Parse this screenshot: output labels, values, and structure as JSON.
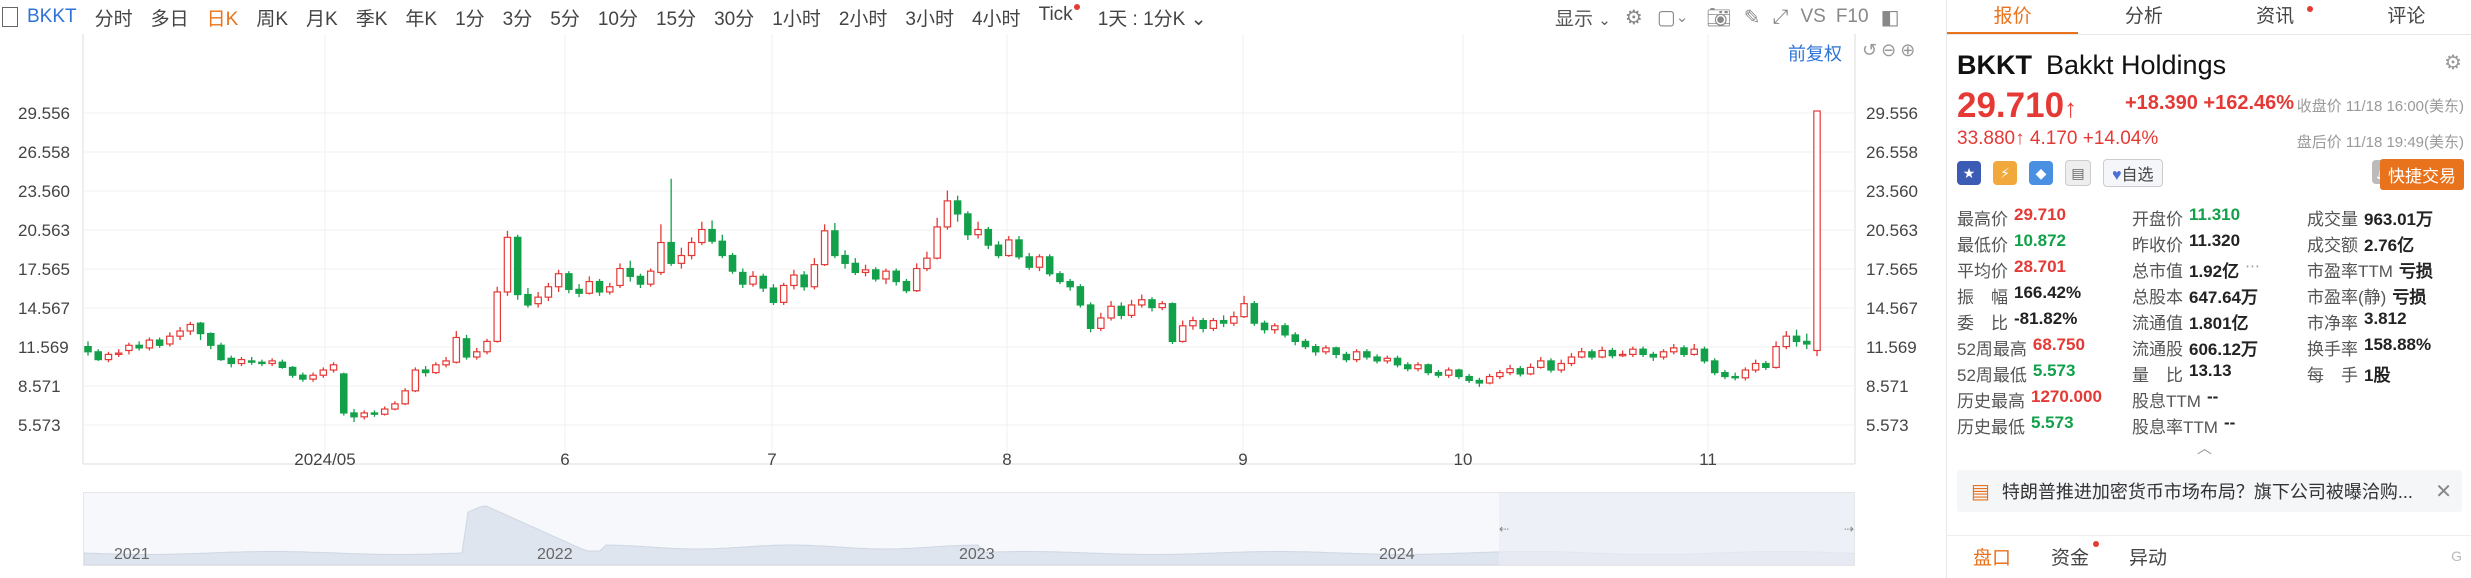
{
  "toolbar": {
    "ticker": "BKKT",
    "periods": [
      "分时",
      "多日",
      "日K",
      "周K",
      "月K",
      "季K",
      "年K",
      "1分",
      "3分",
      "5分",
      "10分",
      "15分",
      "30分",
      "1小时",
      "2小时",
      "3小时",
      "4小时",
      "Tick"
    ],
    "active_period": "日K",
    "kline_setting": "1天 : 1分K",
    "display_label": "显示",
    "vs_label": "VS",
    "f10_label": "F10",
    "adjust_label": "前复权"
  },
  "chart_data": {
    "type": "candlestick",
    "y_ticks": [
      "29.556",
      "26.558",
      "23.560",
      "20.563",
      "17.565",
      "14.567",
      "11.569",
      "8.571",
      "5.573"
    ],
    "x_ticks": [
      "2024/05",
      "6",
      "7",
      "8",
      "9",
      "10",
      "11"
    ],
    "ylim": [
      3.5,
      31
    ],
    "candles": [
      [
        11.6,
        11.2,
        12.0,
        10.9
      ],
      [
        11.2,
        10.6,
        11.4,
        10.5
      ],
      [
        10.6,
        11.0,
        11.2,
        10.4
      ],
      [
        11.0,
        11.1,
        11.4,
        10.8
      ],
      [
        11.3,
        11.7,
        11.9,
        11.0
      ],
      [
        11.7,
        11.5,
        12.0,
        11.3
      ],
      [
        11.5,
        12.1,
        12.3,
        11.3
      ],
      [
        12.1,
        11.7,
        12.3,
        11.5
      ],
      [
        11.8,
        12.4,
        12.7,
        11.6
      ],
      [
        12.4,
        12.8,
        13.1,
        12.1
      ],
      [
        12.8,
        13.3,
        13.5,
        12.5
      ],
      [
        13.4,
        12.6,
        13.5,
        12.1
      ],
      [
        12.6,
        11.7,
        12.7,
        11.4
      ],
      [
        11.7,
        10.6,
        11.9,
        10.5
      ],
      [
        10.7,
        10.3,
        10.9,
        10.0
      ],
      [
        10.3,
        10.6,
        10.8,
        10.1
      ],
      [
        10.5,
        10.4,
        10.8,
        10.2
      ],
      [
        10.4,
        10.3,
        10.6,
        10.1
      ],
      [
        10.3,
        10.5,
        10.7,
        10.1
      ],
      [
        10.4,
        10.0,
        10.6,
        9.9
      ],
      [
        10.0,
        9.4,
        10.1,
        9.2
      ],
      [
        9.4,
        9.1,
        9.6,
        8.9
      ],
      [
        9.1,
        9.4,
        9.6,
        8.9
      ],
      [
        9.4,
        9.8,
        10.0,
        9.2
      ],
      [
        9.8,
        10.2,
        10.4,
        9.6
      ],
      [
        9.5,
        6.5,
        9.6,
        6.3
      ],
      [
        6.5,
        6.2,
        6.8,
        5.8
      ],
      [
        6.2,
        6.5,
        6.7,
        6.0
      ],
      [
        6.5,
        6.4,
        6.7,
        6.2
      ],
      [
        6.4,
        6.8,
        7.0,
        6.3
      ],
      [
        6.8,
        7.2,
        7.4,
        6.7
      ],
      [
        7.2,
        8.2,
        8.4,
        7.1
      ],
      [
        8.2,
        9.8,
        10.0,
        8.1
      ],
      [
        9.8,
        9.6,
        10.1,
        9.3
      ],
      [
        9.6,
        10.2,
        10.4,
        9.5
      ],
      [
        10.2,
        10.5,
        10.8,
        10.0
      ],
      [
        10.4,
        12.3,
        12.8,
        10.3
      ],
      [
        12.2,
        10.8,
        12.5,
        10.6
      ],
      [
        10.8,
        11.2,
        11.5,
        10.6
      ],
      [
        11.2,
        12.0,
        12.2,
        11.0
      ],
      [
        12.0,
        15.8,
        16.2,
        11.9
      ],
      [
        15.8,
        20.0,
        20.5,
        15.5
      ],
      [
        20.0,
        15.6,
        20.2,
        15.2
      ],
      [
        15.6,
        14.8,
        16.1,
        14.6
      ],
      [
        14.9,
        15.4,
        15.8,
        14.6
      ],
      [
        15.4,
        16.2,
        16.5,
        15.1
      ],
      [
        16.2,
        17.2,
        17.5,
        15.8
      ],
      [
        17.2,
        16.0,
        17.4,
        15.7
      ],
      [
        16.0,
        15.7,
        16.4,
        15.4
      ],
      [
        15.7,
        16.6,
        17.0,
        15.6
      ],
      [
        16.6,
        15.8,
        16.8,
        15.5
      ],
      [
        15.8,
        16.2,
        16.5,
        15.6
      ],
      [
        16.3,
        17.6,
        18.0,
        16.1
      ],
      [
        17.6,
        17.0,
        18.2,
        16.6
      ],
      [
        17.0,
        16.4,
        17.2,
        16.1
      ],
      [
        16.4,
        17.4,
        17.6,
        16.2
      ],
      [
        17.3,
        19.6,
        21.0,
        17.1
      ],
      [
        19.6,
        18.0,
        24.5,
        17.8
      ],
      [
        18.0,
        18.6,
        19.2,
        17.6
      ],
      [
        18.6,
        19.6,
        20.0,
        18.3
      ],
      [
        19.6,
        20.6,
        21.2,
        19.4
      ],
      [
        20.6,
        19.7,
        21.3,
        19.5
      ],
      [
        19.7,
        18.6,
        20.2,
        18.4
      ],
      [
        18.6,
        17.4,
        18.8,
        17.2
      ],
      [
        17.3,
        16.4,
        17.6,
        16.1
      ],
      [
        16.4,
        17.0,
        17.4,
        16.2
      ],
      [
        17.0,
        16.1,
        17.2,
        15.8
      ],
      [
        16.1,
        15.0,
        16.4,
        14.8
      ],
      [
        15.0,
        16.3,
        16.5,
        14.8
      ],
      [
        16.3,
        17.1,
        17.5,
        16.0
      ],
      [
        17.1,
        16.2,
        17.4,
        15.9
      ],
      [
        16.2,
        17.9,
        18.4,
        16.0
      ],
      [
        17.9,
        20.5,
        21.0,
        17.8
      ],
      [
        20.5,
        18.6,
        21.1,
        18.4
      ],
      [
        18.6,
        18.0,
        19.0,
        17.6
      ],
      [
        18.0,
        17.3,
        18.4,
        17.1
      ],
      [
        17.3,
        17.5,
        17.9,
        17.0
      ],
      [
        17.5,
        16.8,
        17.7,
        16.6
      ],
      [
        16.8,
        17.4,
        17.6,
        16.4
      ],
      [
        17.4,
        16.6,
        17.6,
        16.3
      ],
      [
        16.6,
        15.9,
        16.8,
        15.7
      ],
      [
        15.9,
        17.6,
        18.0,
        15.8
      ],
      [
        17.6,
        18.4,
        18.9,
        17.4
      ],
      [
        18.4,
        20.8,
        21.5,
        18.3
      ],
      [
        20.8,
        22.8,
        23.6,
        20.6
      ],
      [
        22.8,
        21.8,
        23.2,
        21.2
      ],
      [
        21.8,
        20.2,
        22.0,
        19.8
      ],
      [
        20.2,
        20.6,
        21.2,
        19.9
      ],
      [
        20.6,
        19.4,
        20.8,
        19.1
      ],
      [
        19.4,
        18.6,
        19.7,
        18.4
      ],
      [
        18.6,
        19.8,
        20.1,
        18.5
      ],
      [
        19.8,
        18.5,
        20.1,
        18.3
      ],
      [
        18.5,
        17.7,
        18.8,
        17.5
      ],
      [
        17.7,
        18.5,
        18.7,
        17.4
      ],
      [
        18.5,
        17.2,
        18.7,
        17.0
      ],
      [
        17.2,
        16.6,
        17.4,
        16.4
      ],
      [
        16.6,
        16.2,
        16.8,
        15.9
      ],
      [
        16.2,
        14.8,
        16.4,
        14.6
      ],
      [
        14.8,
        13.0,
        15.0,
        12.7
      ],
      [
        13.0,
        13.8,
        14.2,
        12.8
      ],
      [
        13.8,
        14.7,
        15.1,
        13.6
      ],
      [
        14.7,
        14.0,
        15.0,
        13.7
      ],
      [
        14.0,
        14.8,
        15.2,
        13.8
      ],
      [
        14.8,
        15.2,
        15.6,
        14.6
      ],
      [
        15.2,
        14.6,
        15.4,
        14.3
      ],
      [
        14.6,
        14.9,
        15.1,
        14.4
      ],
      [
        14.9,
        12.0,
        15.0,
        11.8
      ],
      [
        12.0,
        13.2,
        13.6,
        11.9
      ],
      [
        13.2,
        13.6,
        13.9,
        12.9
      ],
      [
        13.6,
        13.0,
        13.8,
        12.7
      ],
      [
        13.0,
        13.6,
        13.8,
        12.8
      ],
      [
        13.6,
        13.4,
        14.0,
        13.1
      ],
      [
        13.4,
        13.9,
        14.3,
        13.2
      ],
      [
        13.9,
        14.9,
        15.5,
        13.8
      ],
      [
        14.9,
        13.4,
        15.1,
        13.2
      ],
      [
        13.4,
        12.9,
        13.6,
        12.6
      ],
      [
        12.9,
        13.2,
        13.4,
        12.6
      ],
      [
        13.2,
        12.5,
        13.4,
        12.3
      ],
      [
        12.5,
        12.0,
        12.7,
        11.7
      ],
      [
        12.0,
        11.6,
        12.2,
        11.4
      ],
      [
        11.6,
        11.2,
        11.8,
        10.9
      ],
      [
        11.2,
        11.5,
        11.7,
        11.0
      ],
      [
        11.5,
        11.0,
        11.6,
        10.7
      ],
      [
        11.0,
        10.6,
        11.2,
        10.4
      ],
      [
        10.6,
        11.2,
        11.4,
        10.4
      ],
      [
        11.2,
        10.8,
        11.4,
        10.6
      ],
      [
        10.8,
        10.5,
        11.0,
        10.3
      ],
      [
        10.5,
        10.7,
        10.9,
        10.3
      ],
      [
        10.7,
        10.2,
        10.9,
        10.0
      ],
      [
        10.2,
        9.9,
        10.4,
        9.7
      ],
      [
        9.9,
        10.2,
        10.4,
        9.7
      ],
      [
        10.2,
        9.6,
        10.3,
        9.4
      ],
      [
        9.6,
        9.4,
        9.8,
        9.2
      ],
      [
        9.4,
        9.8,
        10.0,
        9.2
      ],
      [
        9.8,
        9.3,
        9.9,
        9.1
      ],
      [
        9.3,
        9.0,
        9.5,
        8.8
      ],
      [
        9.0,
        8.8,
        9.2,
        8.5
      ],
      [
        8.8,
        9.3,
        9.5,
        8.7
      ],
      [
        9.3,
        9.6,
        9.8,
        9.1
      ],
      [
        9.6,
        9.9,
        10.2,
        9.4
      ],
      [
        9.9,
        9.5,
        10.1,
        9.3
      ],
      [
        9.5,
        10.0,
        10.3,
        9.4
      ],
      [
        10.0,
        10.5,
        10.8,
        9.9
      ],
      [
        10.5,
        9.8,
        10.7,
        9.6
      ],
      [
        9.8,
        10.3,
        10.6,
        9.6
      ],
      [
        10.3,
        10.8,
        11.1,
        10.1
      ],
      [
        10.8,
        11.2,
        11.5,
        10.7
      ],
      [
        11.2,
        10.8,
        11.4,
        10.6
      ],
      [
        10.8,
        11.3,
        11.6,
        10.7
      ],
      [
        11.3,
        10.9,
        11.5,
        10.7
      ],
      [
        10.9,
        11.0,
        11.3,
        10.8
      ],
      [
        11.0,
        11.4,
        11.6,
        10.8
      ],
      [
        11.4,
        11.0,
        11.6,
        10.8
      ],
      [
        11.0,
        10.8,
        11.2,
        10.5
      ],
      [
        10.8,
        11.2,
        11.4,
        10.6
      ],
      [
        11.2,
        11.5,
        11.8,
        11.0
      ],
      [
        11.5,
        11.0,
        11.7,
        10.8
      ],
      [
        11.0,
        11.4,
        11.8,
        10.9
      ],
      [
        11.4,
        10.5,
        11.6,
        10.3
      ],
      [
        10.5,
        9.6,
        10.7,
        9.4
      ],
      [
        9.6,
        9.3,
        9.8,
        9.1
      ],
      [
        9.3,
        9.2,
        9.6,
        9.0
      ],
      [
        9.2,
        9.8,
        10.0,
        9.0
      ],
      [
        9.8,
        10.3,
        10.6,
        9.6
      ],
      [
        10.3,
        10.0,
        10.5,
        9.8
      ],
      [
        10.0,
        11.6,
        12.0,
        9.9
      ],
      [
        11.6,
        12.4,
        12.8,
        11.4
      ],
      [
        12.4,
        12.0,
        12.9,
        11.6
      ],
      [
        12.0,
        11.8,
        12.6,
        11.4
      ],
      [
        11.3,
        29.71,
        29.71,
        10.87
      ]
    ]
  },
  "overview": {
    "year_labels": [
      "2021",
      "2022",
      "2023",
      "2024"
    ]
  },
  "panel": {
    "tabs": [
      "报价",
      "分析",
      "资讯",
      "评论"
    ],
    "active_tab": "报价",
    "symbol": "BKKT",
    "name": "Bakkt Holdings",
    "price": "29.710",
    "arrow": "↑",
    "change": "+18.390",
    "change_pct": "+162.46%",
    "close_time": "收盘价 11/18 16:00(美东)",
    "post_price": "33.880↑",
    "post_change": "4.170",
    "post_pct": "+14.04%",
    "post_time": "盘后价 11/18 19:49(美东)",
    "watch_label": "自选",
    "trade_label": "快捷交易",
    "stats": [
      [
        {
          "l": "最高价",
          "v": "29.710",
          "c": "red"
        },
        {
          "l": "开盘价",
          "v": "11.310",
          "c": "green"
        },
        {
          "l": "成交量",
          "v": "963.01万",
          "c": "dark"
        }
      ],
      [
        {
          "l": "最低价",
          "v": "10.872",
          "c": "green"
        },
        {
          "l": "昨收价",
          "v": "11.320",
          "c": "dark"
        },
        {
          "l": "成交额",
          "v": "2.76亿",
          "c": "dark"
        }
      ],
      [
        {
          "l": "平均价",
          "v": "28.701",
          "c": "red"
        },
        {
          "l": "总市值",
          "v": "1.92亿",
          "c": "dark"
        },
        {
          "l": "市盈率TTM",
          "v": "亏损",
          "c": "dark"
        }
      ],
      [
        {
          "l": "振　幅",
          "v": "166.42%",
          "c": "dark"
        },
        {
          "l": "总股本",
          "v": "647.64万",
          "c": "dark"
        },
        {
          "l": "市盈率(静)",
          "v": "亏损",
          "c": "dark"
        }
      ],
      [
        {
          "l": "委　比",
          "v": "-81.82%",
          "c": "dark"
        },
        {
          "l": "流通值",
          "v": "1.801亿",
          "c": "dark"
        },
        {
          "l": "市净率",
          "v": "3.812",
          "c": "dark"
        }
      ],
      [
        {
          "l": "52周最高",
          "v": "68.750",
          "c": "red"
        },
        {
          "l": "流通股",
          "v": "606.12万",
          "c": "dark"
        },
        {
          "l": "换手率",
          "v": "158.88%",
          "c": "dark"
        }
      ],
      [
        {
          "l": "52周最低",
          "v": "5.573",
          "c": "green"
        },
        {
          "l": "量　比",
          "v": "13.13",
          "c": "dark"
        },
        {
          "l": "每　手",
          "v": "1股",
          "c": "dark"
        }
      ],
      [
        {
          "l": "历史最高",
          "v": "1270.000",
          "c": "red"
        },
        {
          "l": "股息TTM",
          "v": "--",
          "c": "dark"
        },
        null
      ],
      [
        {
          "l": "历史最低",
          "v": "5.573",
          "c": "green"
        },
        {
          "l": "股息率TTM",
          "v": "--",
          "c": "dark"
        },
        null
      ]
    ],
    "news": "特朗普推进加密货币市场布局？旗下公司被曝洽购...",
    "bottom_tabs": [
      "盘口",
      "资金",
      "异动"
    ],
    "active_bottom": "盘口",
    "colors": {
      "up": "#e53935",
      "down": "#13a04a",
      "accent": "#e8731c"
    }
  }
}
